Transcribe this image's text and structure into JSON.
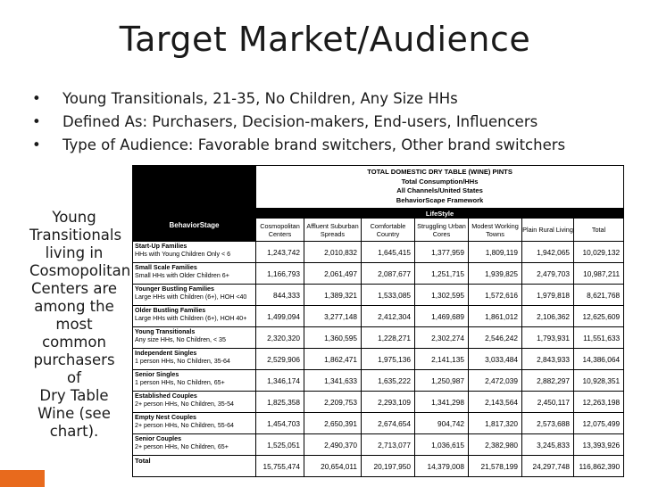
{
  "slide": {
    "title": "Target Market/Audience",
    "bullets": [
      "Young Transitionals, 21-35, No Children, Any Size HHs",
      "Defined As: Purchasers, Decision-makers, End-users, Influencers",
      "Type of Audience: Favorable brand switchers, Other brand switchers"
    ],
    "bullet_glyph": "•",
    "sidebar_lines": [
      "Young",
      "Transitionals",
      "living in",
      "Cosmopolitan",
      "Centers are",
      "among the",
      "most",
      "common",
      "purchasers of",
      "Dry Table",
      "Wine (see",
      "chart)."
    ],
    "accent_color": "#e86a1d"
  },
  "table": {
    "title_lines": [
      "TOTAL DOMESTIC DRY TABLE (WINE) PINTS",
      "Total Consumption/HHs",
      "All Channels/United States",
      "BehaviorScape Framework"
    ],
    "lifestyle_label": "LifeStyle",
    "behavior_label": "BehaviorStage",
    "columns": [
      "Cosmopolitan Centers",
      "Affluent Suburban Spreads",
      "Comfortable Country",
      "Struggling Urban Cores",
      "Modest Working Towns",
      "Plain Rural Living",
      "Total"
    ],
    "rows": [
      {
        "name": "Start-Up Families",
        "desc": "HHs with Young Children Only < 6",
        "values": [
          "1,243,742",
          "2,010,832",
          "1,645,415",
          "1,377,959",
          "1,809,119",
          "1,942,065",
          "10,029,132"
        ]
      },
      {
        "name": "Small Scale Families",
        "desc": "Small HHs with Older Children 6+",
        "values": [
          "1,166,793",
          "2,061,497",
          "2,087,677",
          "1,251,715",
          "1,939,825",
          "2,479,703",
          "10,987,211"
        ]
      },
      {
        "name": "Younger Bustling Families",
        "desc": "Large HHs with Children (6+), HOH <40",
        "values": [
          "844,333",
          "1,389,321",
          "1,533,085",
          "1,302,595",
          "1,572,616",
          "1,979,818",
          "8,621,768"
        ]
      },
      {
        "name": "Older Bustling Families",
        "desc": "Large HHs with Children (6+), HOH 40+",
        "values": [
          "1,499,094",
          "3,277,148",
          "2,412,304",
          "1,469,689",
          "1,861,012",
          "2,106,362",
          "12,625,609"
        ]
      },
      {
        "name": "Young Transitionals",
        "desc": "Any size HHs, No Children, < 35",
        "values": [
          "2,320,320",
          "1,360,595",
          "1,228,271",
          "2,302,274",
          "2,546,242",
          "1,793,931",
          "11,551,633"
        ]
      },
      {
        "name": "Independent Singles",
        "desc": "1 person HHs, No Children, 35-64",
        "values": [
          "2,529,906",
          "1,862,471",
          "1,975,136",
          "2,141,135",
          "3,033,484",
          "2,843,933",
          "14,386,064"
        ]
      },
      {
        "name": "Senior Singles",
        "desc": "1 person HHs, No Children, 65+",
        "values": [
          "1,346,174",
          "1,341,633",
          "1,635,222",
          "1,250,987",
          "2,472,039",
          "2,882,297",
          "10,928,351"
        ]
      },
      {
        "name": "Established Couples",
        "desc": "2+ person HHs, No Children, 35-54",
        "values": [
          "1,825,358",
          "2,209,753",
          "2,293,109",
          "1,341,298",
          "2,143,564",
          "2,450,117",
          "12,263,198"
        ]
      },
      {
        "name": "Empty Nest Couples",
        "desc": "2+ person HHs, No Children, 55-64",
        "values": [
          "1,454,703",
          "2,650,391",
          "2,674,654",
          "904,742",
          "1,817,320",
          "2,573,688",
          "12,075,499"
        ]
      },
      {
        "name": "Senior Couples",
        "desc": "2+ person HHs, No Children, 65+",
        "values": [
          "1,525,051",
          "2,490,370",
          "2,713,077",
          "1,036,615",
          "2,382,980",
          "3,245,833",
          "13,393,926"
        ]
      }
    ],
    "total_row": {
      "label": "Total",
      "values": [
        "15,755,474",
        "20,654,011",
        "20,197,950",
        "14,379,008",
        "21,578,199",
        "24,297,748",
        "116,862,390"
      ]
    }
  }
}
